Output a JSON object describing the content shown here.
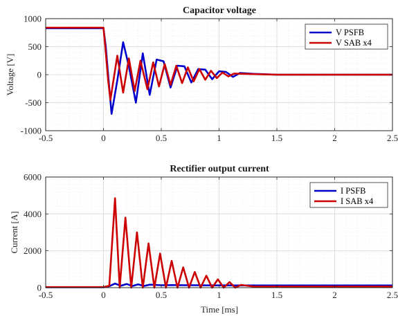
{
  "colors": {
    "series_a": "#0000cc",
    "series_b": "#cc0000",
    "axis": "#262626",
    "grid": "#d9d9d9"
  },
  "chart_data": [
    {
      "type": "line",
      "title": "Capacitor voltage",
      "xlabel": "",
      "ylabel": "Voltage [V]",
      "xlim": [
        -0.5,
        2.5
      ],
      "ylim": [
        -1000,
        1000
      ],
      "xticks": [
        -0.5,
        0,
        0.5,
        1,
        1.5,
        2,
        2.5
      ],
      "yticks": [
        -1000,
        -500,
        0,
        500,
        1000
      ],
      "xtick_labels": [
        "-0.5",
        "0",
        "0.5",
        "1",
        "1.5",
        "2",
        "2.5"
      ],
      "ytick_labels": [
        "-1000",
        "-500",
        "0",
        "500",
        "1000"
      ],
      "grid": true,
      "legend_position": "top-right",
      "series": [
        {
          "name": "V PSFB",
          "color": "#0000cc",
          "x": [
            -0.5,
            0.0,
            0.02,
            0.04,
            0.07,
            0.12,
            0.17,
            0.22,
            0.28,
            0.34,
            0.4,
            0.46,
            0.52,
            0.58,
            0.64,
            0.7,
            0.76,
            0.82,
            0.88,
            0.94,
            1.0,
            1.06,
            1.12,
            1.18,
            1.3,
            1.5,
            2.5
          ],
          "values": [
            830,
            830,
            500,
            0,
            -700,
            -100,
            580,
            150,
            -500,
            380,
            -360,
            270,
            240,
            -230,
            160,
            150,
            -140,
            100,
            90,
            -80,
            60,
            50,
            -40,
            30,
            15,
            0,
            0
          ]
        },
        {
          "name": "V SAB x4",
          "color": "#cc0000",
          "x": [
            -0.5,
            0.0,
            0.02,
            0.04,
            0.06,
            0.12,
            0.17,
            0.22,
            0.27,
            0.32,
            0.38,
            0.43,
            0.48,
            0.53,
            0.58,
            0.63,
            0.68,
            0.73,
            0.78,
            0.83,
            0.88,
            0.93,
            0.98,
            1.03,
            1.08,
            1.13,
            1.3,
            1.5,
            2.5
          ],
          "values": [
            840,
            840,
            400,
            -100,
            -450,
            340,
            -320,
            290,
            -290,
            250,
            -260,
            220,
            -210,
            190,
            -180,
            160,
            -150,
            130,
            -120,
            100,
            -90,
            70,
            -60,
            40,
            -30,
            20,
            10,
            0,
            0
          ]
        }
      ]
    },
    {
      "type": "line",
      "title": "Rectifier output current",
      "xlabel": "Time [ms]",
      "ylabel": "Current [A]",
      "xlim": [
        -0.5,
        2.5
      ],
      "ylim": [
        0,
        6000
      ],
      "xticks": [
        -0.5,
        0,
        0.5,
        1,
        1.5,
        2,
        2.5
      ],
      "yticks": [
        0,
        2000,
        4000,
        6000
      ],
      "xtick_labels": [
        "-0.5",
        "0",
        "0.5",
        "1",
        "1.5",
        "2",
        "2.5"
      ],
      "ytick_labels": [
        "0",
        "2000",
        "4000",
        "6000"
      ],
      "grid": true,
      "legend_position": "top-right",
      "series": [
        {
          "name": "I PSFB",
          "color": "#0000cc",
          "x": [
            -0.5,
            0.0,
            0.05,
            0.1,
            0.15,
            0.2,
            0.25,
            0.3,
            0.35,
            0.4,
            0.5,
            0.6,
            0.7,
            0.8,
            0.9,
            1.0,
            1.2,
            1.5,
            2.5
          ],
          "values": [
            20,
            20,
            80,
            220,
            100,
            200,
            90,
            180,
            90,
            160,
            130,
            140,
            130,
            130,
            125,
            125,
            120,
            120,
            120
          ]
        },
        {
          "name": "I SAB x4",
          "color": "#cc0000",
          "x": [
            -0.5,
            0.0,
            0.05,
            0.1,
            0.14,
            0.19,
            0.24,
            0.29,
            0.34,
            0.39,
            0.44,
            0.49,
            0.54,
            0.59,
            0.64,
            0.69,
            0.74,
            0.79,
            0.84,
            0.89,
            0.94,
            0.99,
            1.04,
            1.09,
            1.14,
            1.19,
            1.3,
            1.5,
            2.5
          ],
          "values": [
            30,
            30,
            100,
            4850,
            0,
            3800,
            0,
            3000,
            0,
            2400,
            0,
            1850,
            0,
            1450,
            0,
            1100,
            0,
            850,
            0,
            650,
            0,
            450,
            0,
            300,
            0,
            150,
            60,
            60,
            60
          ]
        }
      ]
    }
  ]
}
